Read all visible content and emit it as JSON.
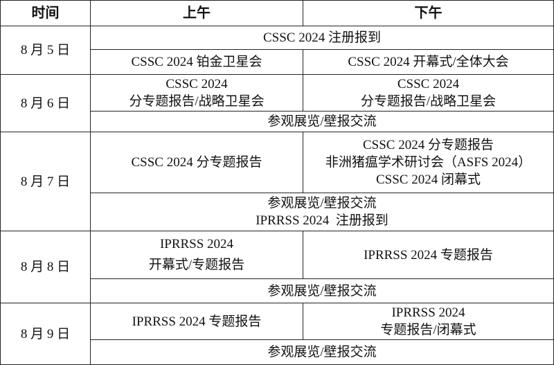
{
  "header": {
    "time": "时间",
    "morning": "上午",
    "afternoon": "下午"
  },
  "days": [
    {
      "date": "8 月 5 日",
      "full1": "CSSC 2024 注册报到",
      "am": "CSSC 2024 铂金卫星会",
      "pm": "CSSC 2024 开幕式/全体大会"
    },
    {
      "date": "8 月 6 日",
      "am": [
        "CSSC 2024",
        "分专题报告/战略卫星会"
      ],
      "pm": [
        "CSSC 2024",
        "分专题报告/战略卫星会"
      ],
      "full": "参观展览/壁报交流"
    },
    {
      "date": "8 月 7 日",
      "am": "CSSC 2024 分专题报告",
      "pm": [
        "CSSC 2024 分专题报告",
        "非洲猪瘟学术研讨会（ASFS 2024）",
        "CSSC 2024 闭幕式"
      ],
      "full": [
        "参观展览/壁报交流",
        "IPRRSS 2024  注册报到"
      ]
    },
    {
      "date": "8 月 8 日",
      "am": [
        "IPRRSS 2024",
        "开幕式/专题报告"
      ],
      "pm": "IPRRSS 2024 专题报告",
      "full": "参观展览/壁报交流"
    },
    {
      "date": "8 月 9 日",
      "am": "IPRRSS 2024 专题报告",
      "pm": [
        "IPRRSS 2024",
        "专题报告/闭幕式"
      ],
      "full": "参观展览/壁报交流"
    }
  ]
}
